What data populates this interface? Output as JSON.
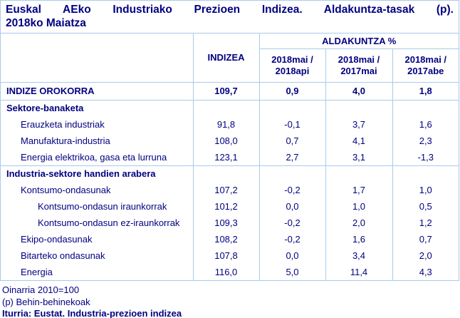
{
  "title": {
    "line1": "Euskal AEko Industriako Prezioen Indizea. Aldakuntza-tasak (p).",
    "line2": "2018ko Maiatza"
  },
  "table": {
    "index_col_header": "INDIZEA",
    "change_group_header": "ALDAKUNTZA %",
    "change_cols": [
      [
        "2018mai /",
        "2018api"
      ],
      [
        "2018mai /",
        "2017mai"
      ],
      [
        "2018mai /",
        "2017abe"
      ]
    ],
    "rows": [
      {
        "label": "INDIZE OROKORRA",
        "level": 0,
        "bold": true,
        "main": true,
        "rule_below": true,
        "values": [
          "109,7",
          "0,9",
          "4,0",
          "1,8"
        ]
      },
      {
        "label": "Sektore-banaketa",
        "level": 0,
        "bold": true,
        "values": [
          "",
          "",
          "",
          ""
        ]
      },
      {
        "label": "Erauzketa industriak",
        "level": 1,
        "values": [
          "91,8",
          "-0,1",
          "3,7",
          "1,6"
        ]
      },
      {
        "label": "Manufaktura-industria",
        "level": 1,
        "values": [
          "108,0",
          "0,7",
          "4,1",
          "2,3"
        ]
      },
      {
        "label": "Energia elektrikoa, gasa eta lurruna",
        "level": 1,
        "rule_below": true,
        "values": [
          "123,1",
          "2,7",
          "3,1",
          "-1,3"
        ]
      },
      {
        "label": "Industria-sektore handien arabera",
        "level": 0,
        "bold": true,
        "values": [
          "",
          "",
          "",
          ""
        ]
      },
      {
        "label": "Kontsumo-ondasunak",
        "level": 1,
        "values": [
          "107,2",
          "-0,2",
          "1,7",
          "1,0"
        ]
      },
      {
        "label": "Kontsumo-ondasun iraunkorrak",
        "level": 2,
        "values": [
          "101,2",
          "0,0",
          "1,0",
          "0,5"
        ]
      },
      {
        "label": "Kontsumo-ondasun ez-iraunkorrak",
        "level": 2,
        "values": [
          "109,3",
          "-0,2",
          "2,0",
          "1,2"
        ]
      },
      {
        "label": "Ekipo-ondasunak",
        "level": 1,
        "values": [
          "108,2",
          "-0,2",
          "1,6",
          "0,7"
        ]
      },
      {
        "label": "Bitarteko ondasunak",
        "level": 1,
        "values": [
          "107,8",
          "0,0",
          "3,4",
          "2,0"
        ]
      },
      {
        "label": "Energia",
        "level": 1,
        "values": [
          "116,0",
          "5,0",
          "11,4",
          "4,3"
        ]
      }
    ]
  },
  "footer": {
    "base_note": "Oinarria 2010=100",
    "provisional_note": "(p) Behin-behinekoak",
    "source_note": "Iturria: Eustat. Industria-prezioen indizea"
  },
  "colors": {
    "text": "#000080",
    "border": "#a8cbea"
  }
}
